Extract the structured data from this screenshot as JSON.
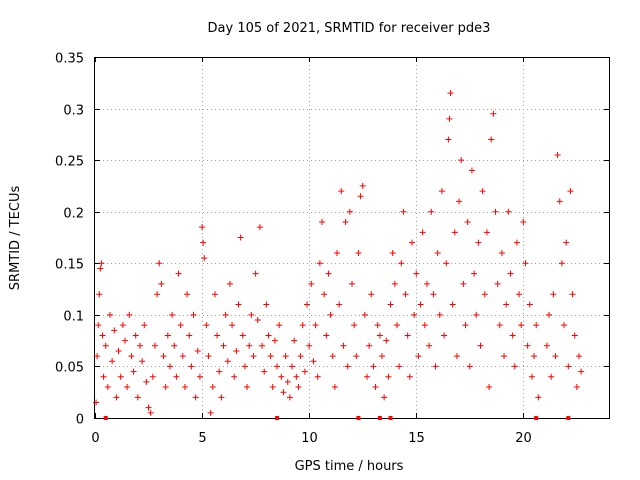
{
  "chart_data": {
    "type": "scatter",
    "title": "Day 105 of 2021, SRMTID for receiver pde3",
    "xlabel": "GPS time / hours",
    "ylabel": "SRMTID / TECUs",
    "xlim": [
      0,
      24
    ],
    "ylim": [
      0,
      0.35
    ],
    "xticks": [
      0,
      5,
      10,
      15,
      20
    ],
    "xtick_labels": [
      "0",
      "5",
      "10",
      "15",
      "20"
    ],
    "yticks": [
      0,
      0.05,
      0.1,
      0.15,
      0.2,
      0.25,
      0.3,
      0.35
    ],
    "ytick_labels": [
      "0",
      "0.05",
      "0.1",
      "0.15",
      "0.2",
      "0.25",
      "0.3",
      "0.35"
    ],
    "grid": true,
    "marker": "plus",
    "color": "#ff0000",
    "series": [
      {
        "name": "SRMTID",
        "points": [
          [
            0.05,
            0.015
          ],
          [
            0.1,
            0.06
          ],
          [
            0.15,
            0.09
          ],
          [
            0.2,
            0.12
          ],
          [
            0.25,
            0.145
          ],
          [
            0.3,
            0.15
          ],
          [
            0.35,
            0.08
          ],
          [
            0.4,
            0.04
          ],
          [
            0.5,
            0.07
          ],
          [
            0.6,
            0.03
          ],
          [
            0.7,
            0.1
          ],
          [
            0.8,
            0.055
          ],
          [
            0.9,
            0.085
          ],
          [
            1.0,
            0.02
          ],
          [
            1.1,
            0.065
          ],
          [
            1.2,
            0.04
          ],
          [
            1.3,
            0.09
          ],
          [
            1.4,
            0.075
          ],
          [
            1.5,
            0.03
          ],
          [
            1.6,
            0.1
          ],
          [
            1.7,
            0.06
          ],
          [
            1.8,
            0.045
          ],
          [
            1.9,
            0.08
          ],
          [
            2.0,
            0.02
          ],
          [
            2.1,
            0.07
          ],
          [
            2.2,
            0.055
          ],
          [
            2.3,
            0.09
          ],
          [
            2.4,
            0.035
          ],
          [
            2.5,
            0.01
          ],
          [
            2.6,
            0.005
          ],
          [
            2.7,
            0.04
          ],
          [
            2.8,
            0.07
          ],
          [
            2.9,
            0.12
          ],
          [
            3.0,
            0.15
          ],
          [
            3.1,
            0.13
          ],
          [
            3.2,
            0.06
          ],
          [
            3.3,
            0.03
          ],
          [
            3.4,
            0.08
          ],
          [
            3.5,
            0.05
          ],
          [
            3.6,
            0.1
          ],
          [
            3.7,
            0.07
          ],
          [
            3.8,
            0.04
          ],
          [
            3.9,
            0.14
          ],
          [
            4.0,
            0.09
          ],
          [
            4.1,
            0.06
          ],
          [
            4.2,
            0.03
          ],
          [
            4.3,
            0.12
          ],
          [
            4.4,
            0.08
          ],
          [
            4.5,
            0.05
          ],
          [
            4.6,
            0.1
          ],
          [
            4.7,
            0.02
          ],
          [
            4.8,
            0.065
          ],
          [
            4.9,
            0.04
          ],
          [
            5.0,
            0.185
          ],
          [
            5.05,
            0.17
          ],
          [
            5.1,
            0.155
          ],
          [
            5.2,
            0.09
          ],
          [
            5.3,
            0.06
          ],
          [
            5.4,
            0.005
          ],
          [
            5.5,
            0.03
          ],
          [
            5.6,
            0.12
          ],
          [
            5.7,
            0.08
          ],
          [
            5.8,
            0.045
          ],
          [
            5.9,
            0.02
          ],
          [
            6.0,
            0.07
          ],
          [
            6.1,
            0.1
          ],
          [
            6.2,
            0.055
          ],
          [
            6.3,
            0.13
          ],
          [
            6.4,
            0.09
          ],
          [
            6.5,
            0.04
          ],
          [
            6.6,
            0.065
          ],
          [
            6.7,
            0.11
          ],
          [
            6.8,
            0.175
          ],
          [
            6.9,
            0.08
          ],
          [
            7.0,
            0.05
          ],
          [
            7.1,
            0.03
          ],
          [
            7.2,
            0.07
          ],
          [
            7.3,
            0.1
          ],
          [
            7.4,
            0.06
          ],
          [
            7.5,
            0.14
          ],
          [
            7.6,
            0.095
          ],
          [
            7.7,
            0.185
          ],
          [
            7.8,
            0.07
          ],
          [
            7.9,
            0.045
          ],
          [
            8.0,
            0.11
          ],
          [
            8.1,
            0.08
          ],
          [
            8.2,
            0.06
          ],
          [
            8.3,
            0.03
          ],
          [
            8.4,
            0.075
          ],
          [
            8.5,
            0.05
          ],
          [
            8.6,
            0.09
          ],
          [
            8.7,
            0.04
          ],
          [
            8.8,
            0.025
          ],
          [
            8.9,
            0.06
          ],
          [
            9.0,
            0.035
          ],
          [
            9.1,
            0.02
          ],
          [
            9.2,
            0.05
          ],
          [
            9.3,
            0.075
          ],
          [
            9.4,
            0.04
          ],
          [
            9.5,
            0.03
          ],
          [
            9.6,
            0.06
          ],
          [
            9.7,
            0.09
          ],
          [
            9.8,
            0.045
          ],
          [
            9.9,
            0.11
          ],
          [
            10.0,
            0.07
          ],
          [
            10.1,
            0.13
          ],
          [
            10.2,
            0.055
          ],
          [
            10.3,
            0.09
          ],
          [
            10.4,
            0.04
          ],
          [
            10.5,
            0.15
          ],
          [
            10.6,
            0.19
          ],
          [
            10.7,
            0.12
          ],
          [
            10.8,
            0.08
          ],
          [
            10.9,
            0.14
          ],
          [
            11.0,
            0.1
          ],
          [
            11.1,
            0.06
          ],
          [
            11.2,
            0.03
          ],
          [
            11.3,
            0.16
          ],
          [
            11.4,
            0.11
          ],
          [
            11.5,
            0.22
          ],
          [
            11.6,
            0.07
          ],
          [
            11.7,
            0.19
          ],
          [
            11.8,
            0.05
          ],
          [
            11.9,
            0.2
          ],
          [
            12.0,
            0.13
          ],
          [
            12.1,
            0.09
          ],
          [
            12.2,
            0.06
          ],
          [
            12.3,
            0.16
          ],
          [
            12.4,
            0.215
          ],
          [
            12.5,
            0.225
          ],
          [
            12.6,
            0.1
          ],
          [
            12.7,
            0.04
          ],
          [
            12.8,
            0.07
          ],
          [
            12.9,
            0.12
          ],
          [
            13.0,
            0.05
          ],
          [
            13.1,
            0.03
          ],
          [
            13.2,
            0.09
          ],
          [
            13.3,
            0.08
          ],
          [
            13.4,
            0.06
          ],
          [
            13.5,
            0.02
          ],
          [
            13.6,
            0.075
          ],
          [
            13.7,
            0.04
          ],
          [
            13.8,
            0.11
          ],
          [
            13.9,
            0.16
          ],
          [
            14.0,
            0.13
          ],
          [
            14.1,
            0.09
          ],
          [
            14.2,
            0.05
          ],
          [
            14.3,
            0.15
          ],
          [
            14.4,
            0.2
          ],
          [
            14.5,
            0.12
          ],
          [
            14.6,
            0.08
          ],
          [
            14.7,
            0.04
          ],
          [
            14.8,
            0.17
          ],
          [
            14.9,
            0.1
          ],
          [
            15.0,
            0.14
          ],
          [
            15.1,
            0.06
          ],
          [
            15.2,
            0.11
          ],
          [
            15.3,
            0.18
          ],
          [
            15.4,
            0.09
          ],
          [
            15.5,
            0.13
          ],
          [
            15.6,
            0.07
          ],
          [
            15.7,
            0.2
          ],
          [
            15.8,
            0.12
          ],
          [
            15.9,
            0.05
          ],
          [
            16.0,
            0.16
          ],
          [
            16.1,
            0.1
          ],
          [
            16.2,
            0.22
          ],
          [
            16.3,
            0.08
          ],
          [
            16.4,
            0.15
          ],
          [
            16.5,
            0.27
          ],
          [
            16.55,
            0.29
          ],
          [
            16.6,
            0.315
          ],
          [
            16.7,
            0.11
          ],
          [
            16.8,
            0.18
          ],
          [
            16.9,
            0.06
          ],
          [
            17.0,
            0.21
          ],
          [
            17.1,
            0.25
          ],
          [
            17.2,
            0.13
          ],
          [
            17.3,
            0.09
          ],
          [
            17.4,
            0.19
          ],
          [
            17.5,
            0.05
          ],
          [
            17.6,
            0.24
          ],
          [
            17.7,
            0.14
          ],
          [
            17.8,
            0.1
          ],
          [
            17.9,
            0.17
          ],
          [
            18.0,
            0.07
          ],
          [
            18.1,
            0.22
          ],
          [
            18.2,
            0.12
          ],
          [
            18.3,
            0.18
          ],
          [
            18.4,
            0.03
          ],
          [
            18.5,
            0.27
          ],
          [
            18.6,
            0.295
          ],
          [
            18.7,
            0.2
          ],
          [
            18.8,
            0.13
          ],
          [
            18.9,
            0.09
          ],
          [
            19.0,
            0.16
          ],
          [
            19.1,
            0.06
          ],
          [
            19.2,
            0.11
          ],
          [
            19.3,
            0.2
          ],
          [
            19.4,
            0.14
          ],
          [
            19.5,
            0.08
          ],
          [
            19.6,
            0.05
          ],
          [
            19.7,
            0.17
          ],
          [
            19.8,
            0.12
          ],
          [
            19.9,
            0.09
          ],
          [
            20.0,
            0.19
          ],
          [
            20.1,
            0.15
          ],
          [
            20.2,
            0.07
          ],
          [
            20.3,
            0.11
          ],
          [
            20.4,
            0.04
          ],
          [
            20.5,
            0.06
          ],
          [
            20.6,
            0.09
          ],
          [
            20.7,
            0.02
          ],
          [
            21.1,
            0.07
          ],
          [
            21.2,
            0.1
          ],
          [
            21.3,
            0.04
          ],
          [
            21.4,
            0.12
          ],
          [
            21.5,
            0.06
          ],
          [
            21.6,
            0.255
          ],
          [
            21.7,
            0.21
          ],
          [
            21.8,
            0.15
          ],
          [
            21.9,
            0.09
          ],
          [
            22.0,
            0.17
          ],
          [
            22.1,
            0.05
          ],
          [
            22.2,
            0.22
          ],
          [
            22.3,
            0.12
          ],
          [
            22.4,
            0.08
          ],
          [
            22.5,
            0.03
          ],
          [
            22.6,
            0.06
          ],
          [
            22.7,
            0.045
          ]
        ]
      }
    ],
    "axis_markers": [
      0.5,
      8.5,
      12.3,
      13.3,
      13.8,
      20.6,
      22.1
    ]
  }
}
